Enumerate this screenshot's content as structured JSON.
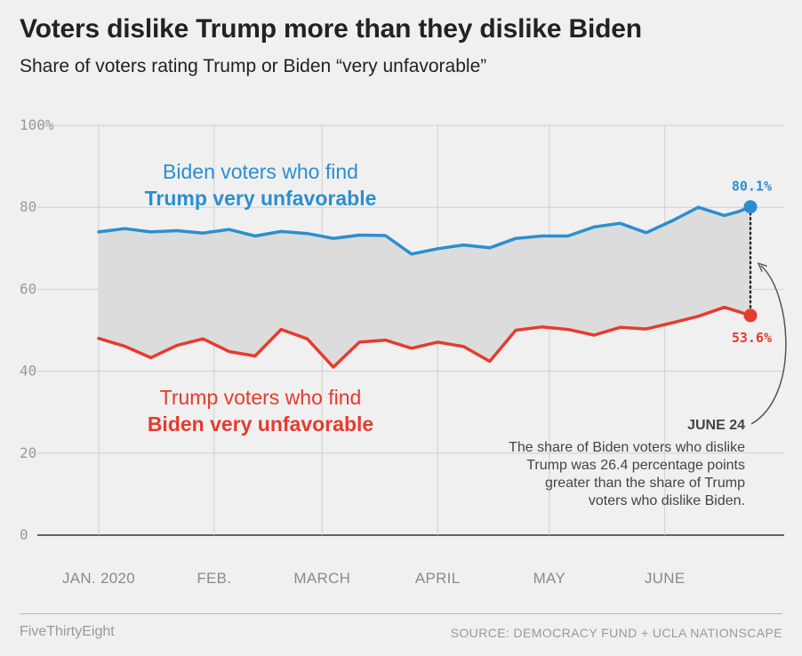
{
  "header": {
    "title": "Voters dislike Trump more than they dislike Biden",
    "subtitle": "Share of voters rating Trump or Biden “very unfavorable”"
  },
  "footer": {
    "brand": "FiveThirtyEight",
    "source": "SOURCE: DEMOCRACY FUND + UCLA NATIONSCAPE"
  },
  "chart_data": {
    "type": "line",
    "ylim": [
      0,
      100
    ],
    "yticks": [
      0,
      20,
      40,
      60,
      80,
      100
    ],
    "ytick_labels": [
      "0",
      "20",
      "40",
      "60",
      "80",
      "100%"
    ],
    "grid": true,
    "x_range": [
      "2020-01-01",
      "2020-06-24"
    ],
    "xtick_labels": [
      {
        "date": "2020-01-01",
        "label": "JAN. 2020"
      },
      {
        "date": "2020-02-01",
        "label": "FEB."
      },
      {
        "date": "2020-03-01",
        "label": "MARCH"
      },
      {
        "date": "2020-04-01",
        "label": "APRIL"
      },
      {
        "date": "2020-05-01",
        "label": "MAY"
      },
      {
        "date": "2020-06-01",
        "label": "JUNE"
      }
    ],
    "x": [
      "2020-01-01",
      "2020-01-08",
      "2020-01-15",
      "2020-01-22",
      "2020-01-29",
      "2020-02-05",
      "2020-02-12",
      "2020-02-19",
      "2020-02-26",
      "2020-03-04",
      "2020-03-11",
      "2020-03-18",
      "2020-03-25",
      "2020-04-01",
      "2020-04-08",
      "2020-04-15",
      "2020-04-22",
      "2020-04-29",
      "2020-05-06",
      "2020-05-13",
      "2020-05-20",
      "2020-05-27",
      "2020-06-03",
      "2020-06-10",
      "2020-06-17",
      "2020-06-21",
      "2020-06-24"
    ],
    "series": [
      {
        "key": "biden_voters",
        "label_line1": "Biden voters who find",
        "label_line2": "Trump very unfavorable",
        "color": "#2b8fcf",
        "values": [
          74.0,
          74.8,
          74.0,
          74.3,
          73.7,
          74.6,
          73.0,
          74.1,
          73.6,
          72.4,
          73.2,
          73.1,
          68.6,
          69.9,
          70.8,
          70.1,
          72.4,
          73.0,
          73.0,
          75.2,
          76.1,
          73.8,
          76.7,
          80.0,
          78.0,
          79.0,
          80.1
        ],
        "end_label": "80.1%"
      },
      {
        "key": "trump_voters",
        "label_line1": "Trump voters who find",
        "label_line2": "Biden very unfavorable",
        "color": "#e63b2e",
        "values": [
          48.0,
          46.1,
          43.3,
          46.3,
          47.9,
          44.8,
          43.7,
          50.2,
          47.9,
          41.0,
          47.1,
          47.6,
          45.6,
          47.1,
          46.0,
          42.4,
          50.0,
          50.8,
          50.2,
          48.8,
          50.7,
          50.3,
          51.8,
          53.4,
          55.6,
          54.5,
          53.6
        ],
        "end_label": "53.6%"
      }
    ],
    "fill_between_color": "#dcdcdc",
    "annotation": {
      "heading": "JUNE 24",
      "lines": [
        "The share of Biden voters who dislike",
        "Trump was 26.4 percentage points",
        "greater than the share of Trump",
        "voters who dislike Biden."
      ]
    }
  }
}
